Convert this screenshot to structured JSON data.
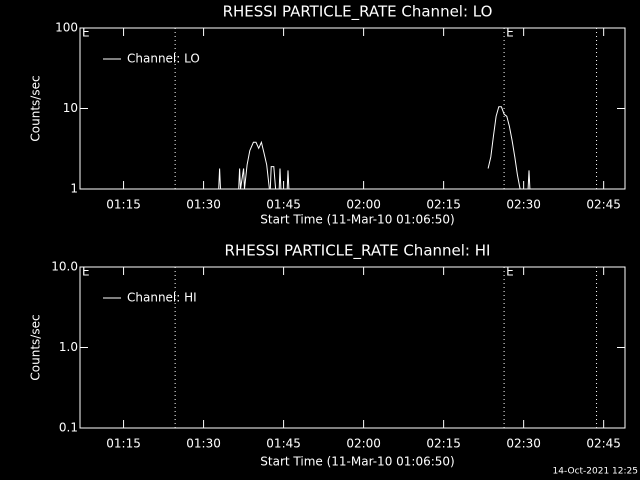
{
  "chart_data": [
    {
      "type": "line",
      "title": "RHESSI PARTICLE_RATE Channel: LO",
      "xlabel": "Start Time (11-Mar-10 01:06:50)",
      "ylabel": "Counts/sec",
      "log_scale": true,
      "ylim": [
        1,
        100
      ],
      "yticks": [
        1,
        10,
        100
      ],
      "xlim": [
        "01:06:50",
        "02:49:00"
      ],
      "xticks": [
        "01:15",
        "01:30",
        "01:45",
        "02:00",
        "02:15",
        "02:30",
        "02:45"
      ],
      "vlines": [
        "01:24:40",
        "02:26:20",
        "02:43:40"
      ],
      "annotations": [
        {
          "x": "01:06:50",
          "text": "E"
        },
        {
          "x": "02:26:20",
          "text": "E"
        }
      ],
      "legend": "upper left",
      "x": [
        "01:32:50",
        "01:33:00",
        "01:33:10",
        null,
        "01:36:35",
        "01:36:45",
        "01:36:55",
        "01:37:30",
        "01:37:40",
        "01:38:10",
        "01:38:40",
        "01:39:20",
        "01:39:50",
        "01:40:20",
        "01:40:50",
        "01:41:20",
        "01:41:50",
        "01:42:20",
        null,
        "01:42:30",
        "01:42:40",
        "01:43:10",
        "01:43:30",
        null,
        "01:44:10",
        "01:44:20",
        "01:44:30",
        null,
        "01:45:40",
        "01:45:50",
        "01:46:00",
        null,
        "02:23:20",
        "02:23:50",
        "02:24:20",
        "02:24:50",
        "02:25:20",
        "02:25:50",
        "02:26:20",
        "02:26:50",
        "02:27:20",
        "02:27:50",
        "02:28:20",
        "02:28:50",
        "02:29:20",
        null,
        "02:30:50",
        "02:31:00",
        "02:31:10"
      ],
      "series": [
        {
          "name": "Channel: LO",
          "color": "#ffffff",
          "values": [
            1.0,
            1.8,
            1.0,
            null,
            1.0,
            1.8,
            1.0,
            1.8,
            1.0,
            2.0,
            3.0,
            3.8,
            3.8,
            3.2,
            3.8,
            2.8,
            2.0,
            1.0,
            null,
            1.0,
            1.9,
            1.9,
            1.0,
            null,
            1.0,
            1.8,
            1.0,
            null,
            1.0,
            1.7,
            1.0,
            null,
            1.8,
            2.5,
            4.5,
            8.0,
            10.5,
            10.5,
            8.5,
            8.0,
            6.0,
            4.0,
            2.5,
            1.5,
            1.0,
            null,
            1.0,
            1.7,
            1.0
          ]
        }
      ]
    },
    {
      "type": "line",
      "title": "RHESSI PARTICLE_RATE Channel: HI",
      "xlabel": "Start Time (11-Mar-10 01:06:50)",
      "ylabel": "Counts/sec",
      "log_scale": true,
      "ylim": [
        0.1,
        10
      ],
      "yticks": [
        0.1,
        {
          "value": 1,
          "label": "1.0"
        },
        {
          "value": 10,
          "label": "10.0"
        }
      ],
      "xlim": [
        "01:06:50",
        "02:49:00"
      ],
      "xticks": [
        "01:15",
        "01:30",
        "01:45",
        "02:00",
        "02:15",
        "02:30",
        "02:45"
      ],
      "vlines": [
        "01:24:40",
        "02:26:20",
        "02:43:40"
      ],
      "annotations": [
        {
          "x": "01:06:50",
          "text": "E"
        },
        {
          "x": "02:26:20",
          "text": "E"
        }
      ],
      "legend": "upper left",
      "x": [],
      "series": [
        {
          "name": "Channel: HI",
          "color": "#ffffff",
          "values": []
        }
      ]
    }
  ],
  "footer": "14-Oct-2021 12:25"
}
